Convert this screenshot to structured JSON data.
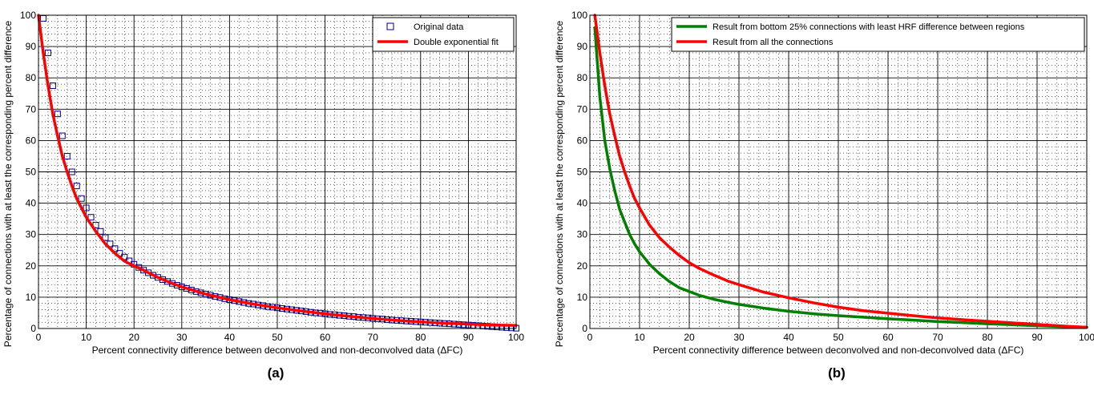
{
  "chart_data": [
    {
      "type": "scatter+line",
      "caption": "(a)",
      "xlabel": "Percent connectivity difference between deconvolved and non-deconvolved data (ΔFC)",
      "ylabel": "Percentage of connections with at least the corresponding percent difference",
      "xlim": [
        0,
        100
      ],
      "ylim": [
        0,
        100
      ],
      "xticks": [
        0,
        10,
        20,
        30,
        40,
        50,
        60,
        70,
        80,
        90,
        100
      ],
      "yticks": [
        0,
        10,
        20,
        30,
        40,
        50,
        60,
        70,
        80,
        90,
        100
      ],
      "grid": "major solid + minor dotted",
      "legend_position": "top-right",
      "series": [
        {
          "name": "Original data",
          "style": "open-square-markers",
          "color": "#00007f",
          "x": [
            1,
            2,
            3,
            4,
            5,
            6,
            7,
            8,
            9,
            10,
            11,
            12,
            13,
            14,
            15,
            16,
            17,
            18,
            19,
            20,
            21,
            22,
            23,
            24,
            25,
            26,
            27,
            28,
            29,
            30,
            31,
            32,
            33,
            34,
            35,
            36,
            37,
            38,
            39,
            40,
            41,
            42,
            43,
            44,
            45,
            46,
            47,
            48,
            49,
            50,
            51,
            52,
            53,
            54,
            55,
            56,
            57,
            58,
            59,
            60,
            61,
            62,
            63,
            64,
            65,
            66,
            67,
            68,
            69,
            70,
            71,
            72,
            73,
            74,
            75,
            76,
            77,
            78,
            79,
            80,
            81,
            82,
            83,
            84,
            85,
            86,
            87,
            88,
            89,
            90,
            91,
            92,
            93,
            94,
            95,
            96,
            97,
            98,
            99,
            100
          ],
          "y": [
            99.0,
            88.0,
            77.5,
            68.5,
            61.5,
            55.0,
            50.0,
            45.5,
            41.5,
            38.5,
            35.5,
            33.0,
            31.0,
            29.0,
            27.0,
            25.5,
            24.0,
            22.8,
            21.6,
            20.5,
            19.5,
            18.6,
            17.8,
            17.0,
            16.3,
            15.6,
            15.0,
            14.4,
            13.8,
            13.3,
            12.8,
            12.3,
            11.8,
            11.4,
            11.0,
            10.6,
            10.2,
            9.9,
            9.5,
            9.2,
            8.9,
            8.6,
            8.3,
            8.0,
            7.8,
            7.5,
            7.3,
            7.0,
            6.8,
            6.6,
            6.4,
            6.2,
            6.0,
            5.8,
            5.6,
            5.4,
            5.2,
            5.0,
            4.9,
            4.7,
            4.5,
            4.4,
            4.2,
            4.1,
            3.9,
            3.8,
            3.6,
            3.5,
            3.4,
            3.2,
            3.1,
            3.0,
            2.8,
            2.7,
            2.6,
            2.5,
            2.4,
            2.3,
            2.2,
            2.1,
            2.0,
            1.9,
            1.8,
            1.7,
            1.6,
            1.5,
            1.4,
            1.3,
            1.2,
            1.1,
            1.0,
            0.9,
            0.8,
            0.7,
            0.6,
            0.5,
            0.4,
            0.3,
            0.2,
            0.1
          ]
        },
        {
          "name": "Double exponential fit",
          "style": "line",
          "color": "#ff0000",
          "x": [
            0,
            1,
            2,
            3,
            4,
            5,
            6,
            7,
            8,
            9,
            10,
            12,
            14,
            16,
            18,
            20,
            22,
            25,
            28,
            30,
            35,
            40,
            45,
            50,
            55,
            60,
            65,
            70,
            75,
            80,
            85,
            90,
            95,
            100
          ],
          "y": [
            100,
            88,
            77.5,
            68.5,
            61.5,
            55,
            50,
            45.5,
            41.5,
            38.5,
            35.5,
            31,
            27,
            24,
            21.5,
            20,
            18.6,
            16.3,
            14.4,
            13.3,
            11,
            9.2,
            7.8,
            6.6,
            5.6,
            4.7,
            3.9,
            3.2,
            2.6,
            2.1,
            1.7,
            1.4,
            1.1,
            1.0
          ]
        }
      ]
    },
    {
      "type": "line",
      "caption": "(b)",
      "xlabel": "Percent connectivity difference between deconvolved and non-deconvolved data (ΔFC)",
      "ylabel": "Percentage of connections with at least the corresponding percent difference",
      "xlim": [
        0,
        100
      ],
      "ylim": [
        0,
        100
      ],
      "xticks": [
        0,
        10,
        20,
        30,
        40,
        50,
        60,
        70,
        80,
        90,
        100
      ],
      "yticks": [
        0,
        10,
        20,
        30,
        40,
        50,
        60,
        70,
        80,
        90,
        100
      ],
      "grid": "major solid + minor dotted",
      "legend_position": "top-right",
      "series": [
        {
          "name": "Result from bottom 25% connections with least HRF difference between regions",
          "style": "line",
          "color": "#007f00",
          "x": [
            1,
            1.5,
            2,
            3,
            4,
            5,
            6,
            7,
            8,
            9,
            10,
            12,
            14,
            16,
            18,
            20,
            22,
            25,
            28,
            30,
            35,
            40,
            45,
            50,
            55,
            60,
            65,
            70,
            75,
            80,
            85,
            90,
            95,
            100
          ],
          "y": [
            96,
            85,
            74,
            60,
            51,
            44,
            38,
            34,
            30,
            27,
            24.5,
            20.5,
            17.5,
            15,
            13,
            11.8,
            10.6,
            9.3,
            8.3,
            7.7,
            6.5,
            5.5,
            4.7,
            4.1,
            3.6,
            3.1,
            2.7,
            2.2,
            1.9,
            1.5,
            1.2,
            0.9,
            0.6,
            0.4
          ]
        },
        {
          "name": "Result from all the connections",
          "style": "line",
          "color": "#ff0000",
          "x": [
            1,
            2,
            3,
            4,
            5,
            6,
            7,
            8,
            9,
            10,
            12,
            14,
            16,
            18,
            20,
            22,
            25,
            28,
            30,
            35,
            40,
            45,
            50,
            55,
            60,
            65,
            70,
            75,
            80,
            85,
            90,
            95,
            100
          ],
          "y": [
            100,
            88,
            77.5,
            68.5,
            61.5,
            55,
            50,
            45.5,
            41.5,
            38.5,
            33,
            29,
            26,
            23.3,
            21,
            19.2,
            17,
            15,
            14,
            11.6,
            9.8,
            8.2,
            6.8,
            5.7,
            4.9,
            4.1,
            3.4,
            2.8,
            2.3,
            1.8,
            1.3,
            0.8,
            0.4
          ]
        }
      ]
    }
  ]
}
